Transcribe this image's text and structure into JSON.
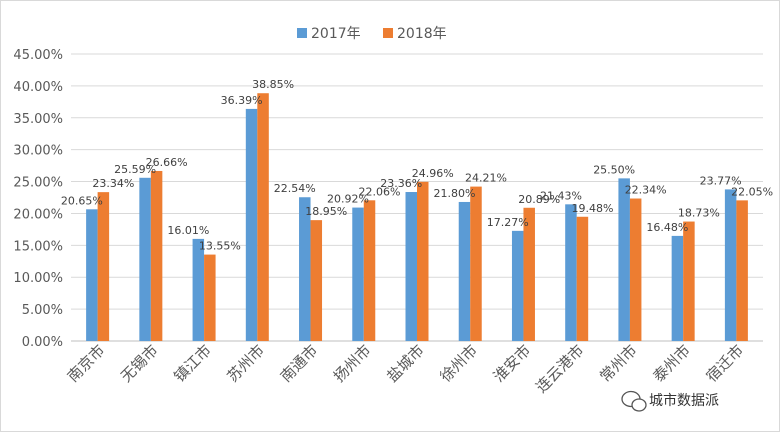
{
  "chart_data": {
    "type": "bar",
    "categories": [
      "南京市",
      "无锡市",
      "镇江市",
      "苏州市",
      "南通市",
      "扬州市",
      "盐城市",
      "徐州市",
      "淮安市",
      "连云港市",
      "常州市",
      "泰州市",
      "宿迁市"
    ],
    "series": [
      {
        "name": "2017年",
        "color": "#5B9BD5",
        "values": [
          20.65,
          25.59,
          16.01,
          36.39,
          22.54,
          20.92,
          23.36,
          21.8,
          17.27,
          21.43,
          25.5,
          16.48,
          23.77
        ],
        "labels": [
          "20.65%",
          "25.59%",
          "16.01%",
          "36.39%",
          "22.54%",
          "20.92%",
          "23.36%",
          "21.80%",
          "17.27%",
          "21.43%",
          "25.50%",
          "16.48%",
          "23.77%"
        ]
      },
      {
        "name": "2018年",
        "color": "#ED7D31",
        "values": [
          23.34,
          26.66,
          13.55,
          38.85,
          18.95,
          22.06,
          24.96,
          24.21,
          20.89,
          19.48,
          22.34,
          18.73,
          22.05
        ],
        "labels": [
          "23.34%",
          "26.66%",
          "13.55%",
          "38.85%",
          "18.95%",
          "22.06%",
          "24.96%",
          "24.21%",
          "20.89%",
          "19.48%",
          "22.34%",
          "18.73%",
          "22.05%"
        ]
      }
    ],
    "yticks": [
      "0.00%",
      "5.00%",
      "10.00%",
      "15.00%",
      "20.00%",
      "25.00%",
      "30.00%",
      "35.00%",
      "40.00%",
      "45.00%"
    ],
    "ylim": [
      0,
      45
    ],
    "grid": true,
    "legend_position": "top-center"
  },
  "watermark": {
    "text": "城市数据派",
    "icon": "wechat-icon"
  }
}
